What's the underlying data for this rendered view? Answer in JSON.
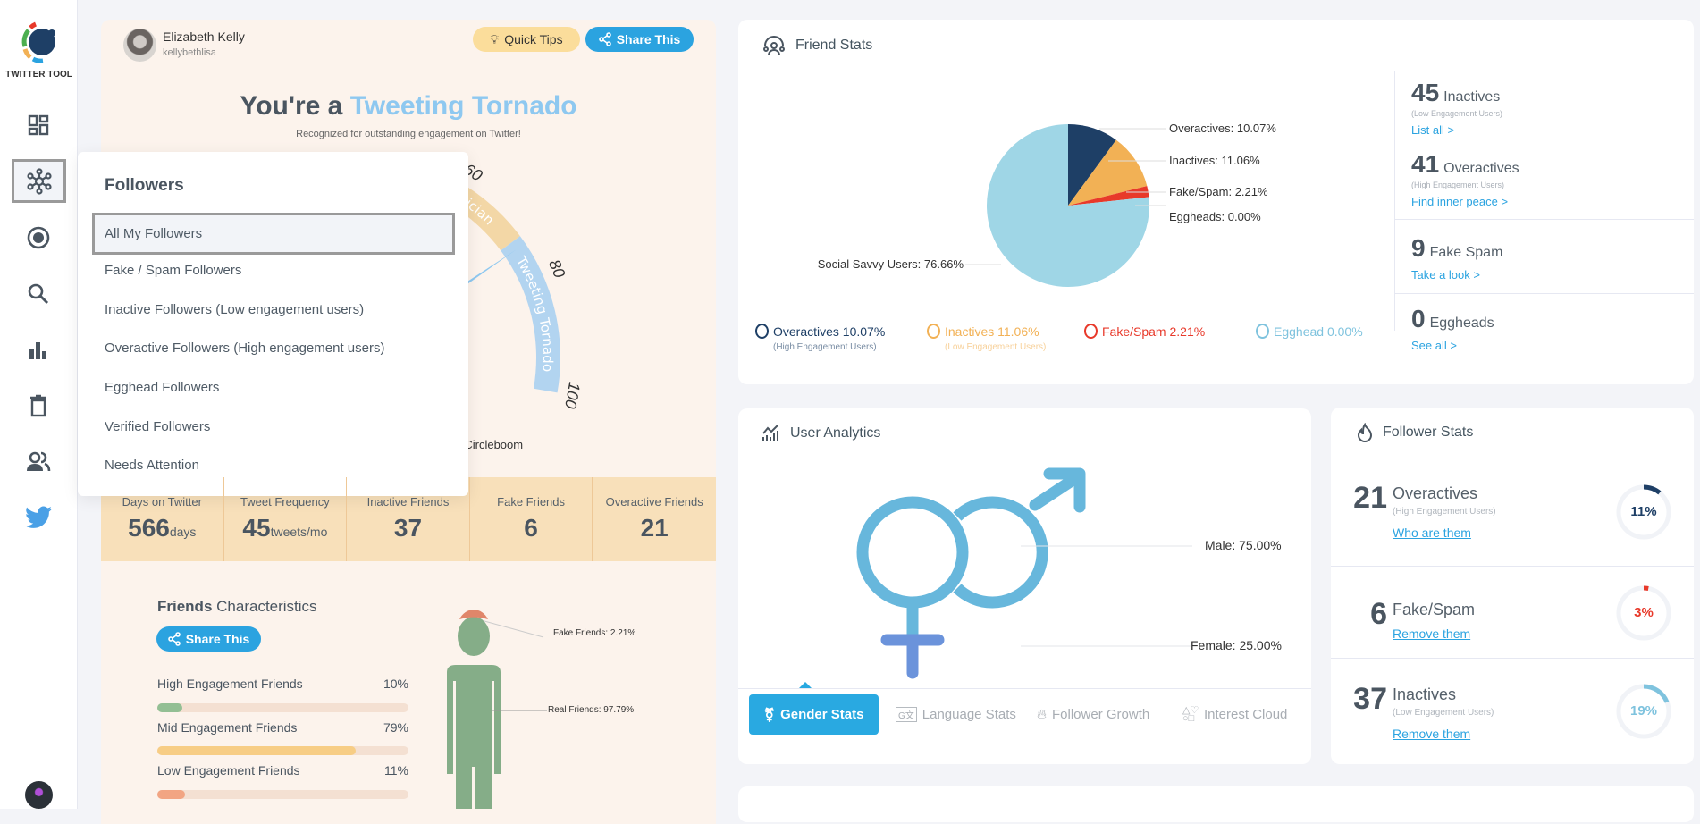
{
  "sidebar": {
    "brand": "TWITTER TOOL",
    "items": [
      "dashboard",
      "followers",
      "circle",
      "search",
      "analytics",
      "delete",
      "friends",
      "twitter"
    ],
    "selected": "followers"
  },
  "profile": {
    "name": "Elizabeth Kelly",
    "handle": "kellybethlisa"
  },
  "header_buttons": {
    "quick_tips": "Quick Tips",
    "share": "Share This"
  },
  "hero": {
    "prefix": "You're a",
    "highlight": "Tweeting Tornado",
    "subtitle": "Recognized for outstanding engagement on Twitter!"
  },
  "gauge": {
    "ticks": [
      {
        "value": 60,
        "label": "60"
      },
      {
        "value": 80,
        "label": "80"
      },
      {
        "value": 100,
        "label": "100"
      }
    ],
    "bands": [
      {
        "from": 45,
        "to": 72.5,
        "label": "ician",
        "color": "#f3d7a6"
      },
      {
        "from": 72.5,
        "to": 100,
        "label": "Tweeting Tornado",
        "color": "#b2d4f0"
      }
    ],
    "needle_value": 74,
    "credit": "by Circleboom"
  },
  "stats_band": [
    {
      "label": "Days on Twitter",
      "value": "566",
      "unit": "days"
    },
    {
      "label": "Tweet Frequency",
      "value": "45",
      "unit": "tweets/mo"
    },
    {
      "label": "Inactive Friends",
      "value": "37",
      "unit": ""
    },
    {
      "label": "Fake Friends",
      "value": "6",
      "unit": ""
    },
    {
      "label": "Overactive Friends",
      "value": "21",
      "unit": ""
    }
  ],
  "friends_characteristics": {
    "title_bold": "Friends",
    "title_rest": "Characteristics",
    "share": "Share This",
    "bars": [
      {
        "label": "High Engagement Friends",
        "pct_text": "10%",
        "pct": 10,
        "color": "#93bf94"
      },
      {
        "label": "Mid Engagement Friends",
        "pct_text": "79%",
        "pct": 79,
        "color": "#f7cd85"
      },
      {
        "label": "Low Engagement Friends",
        "pct_text": "11%",
        "pct": 11,
        "color": "#f2a583"
      }
    ],
    "figure": {
      "fake": "Fake Friends: 2.21%",
      "real": "Real Friends: 97.79%",
      "fake_pct": 2.21,
      "real_pct": 97.79
    }
  },
  "dropdown": {
    "title": "Followers",
    "items": [
      "All My Followers",
      "Fake / Spam Followers",
      "Inactive Followers (Low engagement users)",
      "Overactive Followers (High engagement users)",
      "Egghead Followers",
      "Verified Followers",
      "Needs Attention"
    ],
    "selected": 0
  },
  "friend_stats": {
    "title": "Friend Stats",
    "pie": [
      {
        "name": "Overactives",
        "value": 10.07,
        "label": "Overactives: 10.07%",
        "color": "#1e3f66"
      },
      {
        "name": "Inactives",
        "value": 11.06,
        "label": "Inactives: 11.06%",
        "color": "#f2b155"
      },
      {
        "name": "Fake/Spam",
        "value": 2.21,
        "label": "Fake/Spam: 2.21%",
        "color": "#e8392a"
      },
      {
        "name": "Eggheads",
        "value": 0.0,
        "label": "Eggheads: 0.00%",
        "color": "#7fc3de"
      },
      {
        "name": "Social Savvy Users",
        "value": 76.66,
        "label": "Social Savvy Users: 76.66%",
        "color": "#9fd6e6"
      }
    ],
    "legend": [
      {
        "text": "Overactives 10.07%",
        "sub": "(High Engagement Users)",
        "color": "#1e3f66"
      },
      {
        "text": "Inactives 11.06%",
        "sub": "(Low Engagement Users)",
        "color": "#f2b155"
      },
      {
        "text": "Fake/Spam 2.21%",
        "sub": "",
        "color": "#e8392a"
      },
      {
        "text": "Egghead 0.00%",
        "sub": "",
        "color": "#7fc3de"
      }
    ],
    "side": [
      {
        "num": "45",
        "label": "Inactives",
        "sub": "(Low Engagement Users)",
        "link": "List all >"
      },
      {
        "num": "41",
        "label": "Overactives",
        "sub": "(High Engagement Users)",
        "link": "Find inner peace >"
      },
      {
        "num": "9",
        "label": "Fake Spam",
        "sub": "",
        "link": "Take a look >"
      },
      {
        "num": "0",
        "label": "Eggheads",
        "sub": "",
        "link": "See all >"
      }
    ]
  },
  "user_analytics": {
    "title": "User Analytics",
    "male": "Male: 75.00%",
    "female": "Female: 25.00%",
    "male_pct": 75,
    "female_pct": 25,
    "tabs": [
      "Gender Stats",
      "Language Stats",
      "Follower Growth",
      "Interest Cloud"
    ],
    "active_tab": 0
  },
  "follower_stats": {
    "title": "Follower Stats",
    "rows": [
      {
        "num": "21",
        "label": "Overactives",
        "sub": "(High Engagement Users)",
        "link": "Who are them",
        "pct_text": "11%",
        "pct": 11,
        "color": "#1e3f66"
      },
      {
        "num": "6",
        "label": "Fake/Spam",
        "sub": "",
        "link": "Remove them",
        "pct_text": "3%",
        "pct": 3,
        "color": "#e8392a"
      },
      {
        "num": "37",
        "label": "Inactives",
        "sub": "(Low Engagement Users)",
        "link": "Remove them",
        "pct_text": "19%",
        "pct": 19,
        "color": "#7fc3de"
      }
    ]
  }
}
